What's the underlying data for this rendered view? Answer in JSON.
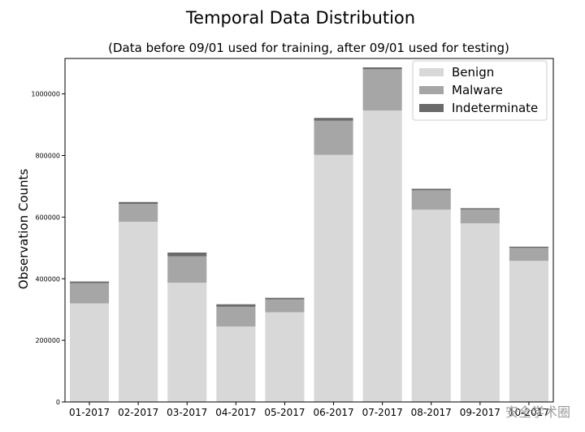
{
  "chart_data": {
    "type": "bar",
    "stacked": true,
    "title": "Temporal Data Distribution",
    "subtitle": "(Data before 09/01 used for training, after 09/01 used for testing)",
    "xlabel": "",
    "ylabel": "Observation Counts",
    "ylim": [
      0,
      1115000
    ],
    "yticks": [
      0,
      200000,
      400000,
      600000,
      800000,
      1000000
    ],
    "categories": [
      "01-2017",
      "02-2017",
      "03-2017",
      "04-2017",
      "05-2017",
      "06-2017",
      "07-2017",
      "08-2017",
      "09-2017",
      "10-2017"
    ],
    "series": [
      {
        "name": "Benign",
        "color": "#d8d8d8",
        "values": [
          320000,
          585000,
          387000,
          245000,
          291000,
          802000,
          946000,
          624000,
          580000,
          458000
        ]
      },
      {
        "name": "Malware",
        "color": "#a6a6a6",
        "values": [
          66000,
          58000,
          86000,
          64000,
          42000,
          111000,
          134000,
          63000,
          45000,
          42000
        ]
      },
      {
        "name": "Indeterminate",
        "color": "#6a6a6a",
        "values": [
          5000,
          6000,
          12000,
          8000,
          5000,
          9000,
          6000,
          5000,
          4000,
          4000
        ]
      }
    ],
    "legend": "top-right",
    "grid": false
  },
  "watermark": "安全学术圈"
}
